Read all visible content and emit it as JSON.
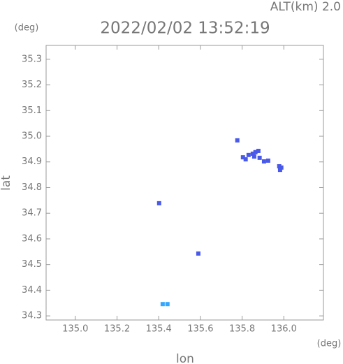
{
  "chart_data": {
    "type": "scatter",
    "title": "2022/02/02 13:52:19",
    "subtitle": "ALT(km) 2.0",
    "x_label": "lon",
    "y_label": "lat",
    "x_unit": "(deg)",
    "y_unit": "(deg)",
    "xlim": [
      134.86,
      136.19
    ],
    "ylim": [
      34.284,
      35.354
    ],
    "xticks": [
      {
        "value": 135,
        "label": "135.0"
      },
      135.2,
      135.4,
      135.6,
      135.8,
      {
        "value": 136,
        "label": "136.0"
      }
    ],
    "yticks": [
      34.3,
      34.4,
      34.5,
      34.6,
      34.7,
      34.8,
      34.9,
      {
        "value": 35,
        "label": "35.0"
      },
      35.1,
      35.2,
      35.3
    ],
    "series": [
      {
        "color": "#4a5ae8",
        "x": [
          135.804,
          135.817,
          135.831,
          135.851,
          135.864,
          135.878,
          135.858,
          135.884,
          135.905,
          135.925,
          135.978,
          135.982,
          135.988,
          135.59,
          135.777,
          135.402
        ],
        "y": [
          34.918,
          34.91,
          34.927,
          34.932,
          34.938,
          34.943,
          34.921,
          34.916,
          34.902,
          34.905,
          34.883,
          34.869,
          34.878,
          34.543,
          34.984,
          34.739
        ]
      },
      {
        "color": "#33a6ff",
        "x": [
          135.419,
          135.442
        ],
        "y": [
          34.346,
          34.346
        ]
      }
    ]
  }
}
